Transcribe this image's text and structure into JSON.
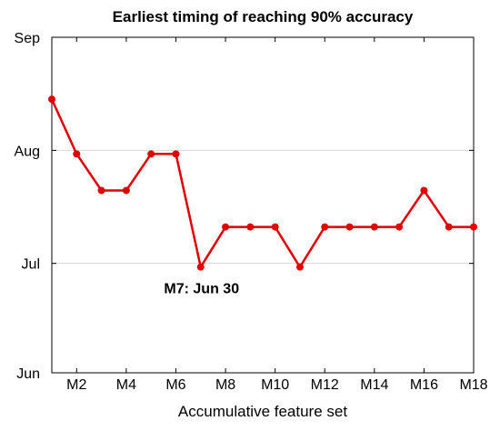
{
  "chart_data": {
    "type": "line",
    "title": "Earliest timing of reaching 90% accuracy",
    "xlabel": "Accumulative feature set",
    "ylabel": "",
    "categories": [
      "M1",
      "M2",
      "M3",
      "M4",
      "M5",
      "M6",
      "M7",
      "M8",
      "M9",
      "M10",
      "M11",
      "M12",
      "M13",
      "M14",
      "M15",
      "M16",
      "M17",
      "M18"
    ],
    "x_tick_labels": [
      "M2",
      "M4",
      "M6",
      "M8",
      "M10",
      "M12",
      "M14",
      "M16",
      "M18"
    ],
    "y_ticks": [
      {
        "value": "Jun 1",
        "label": "Jun"
      },
      {
        "value": "Jul 1",
        "label": "Jul"
      },
      {
        "value": "Aug 1",
        "label": "Aug"
      },
      {
        "value": "Sep 1",
        "label": "Sep"
      }
    ],
    "ylim": [
      "Jun 1",
      "Sep 1"
    ],
    "grid": "horizontal",
    "series": [
      {
        "color": "#e00000",
        "values": [
          "Aug 15",
          "Jul 31",
          "Jul 21",
          "Jul 21",
          "Jul 31",
          "Jul 31",
          "Jun 30",
          "Jul 11",
          "Jul 11",
          "Jul 11",
          "Jun 30",
          "Jul 11",
          "Jul 11",
          "Jul 11",
          "Jul 11",
          "Jul 21",
          "Jul 11",
          "Jul 11"
        ]
      }
    ],
    "annotation": {
      "text": "M7: Jun 30",
      "category": "M7"
    }
  }
}
